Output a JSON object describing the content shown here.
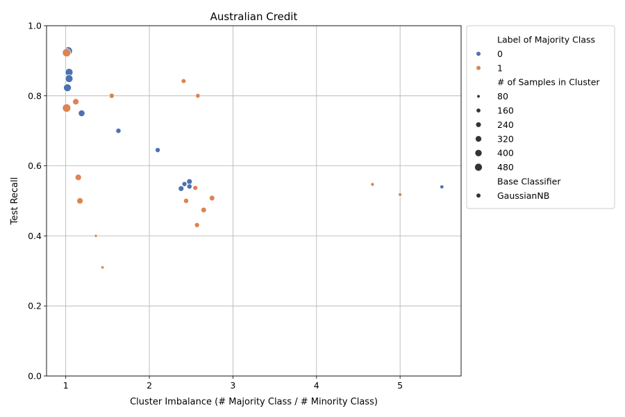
{
  "chart_data": {
    "type": "scatter",
    "title": "Australian Credit",
    "xlabel": "Cluster Imbalance (# Majority Class / # Minority Class)",
    "ylabel": "Test Recall",
    "xlim": [
      0.77,
      5.73
    ],
    "ylim": [
      0,
      1.0
    ],
    "xticks": [
      1,
      2,
      3,
      4,
      5
    ],
    "yticks": [
      0.0,
      0.2,
      0.4,
      0.6,
      0.8,
      1.0
    ],
    "xtick_labels": [
      "1",
      "2",
      "3",
      "4",
      "5"
    ],
    "ytick_labels": [
      "0.0",
      "0.2",
      "0.4",
      "0.6",
      "0.8",
      "1.0"
    ],
    "grid": true,
    "legend": {
      "placement": "outside-right-top",
      "hue_title": "Label of Majority Class",
      "hue_entries": [
        {
          "label": "0",
          "color": "#4c72b0"
        },
        {
          "label": "1",
          "color": "#dd8452"
        }
      ],
      "size_title": "# of Samples in Cluster",
      "size_entries": [
        {
          "label": "80",
          "value": 80
        },
        {
          "label": "160",
          "value": 160
        },
        {
          "label": "240",
          "value": 240
        },
        {
          "label": "320",
          "value": 320
        },
        {
          "label": "400",
          "value": 400
        },
        {
          "label": "480",
          "value": 480
        }
      ],
      "style_title": "Base Classifier",
      "style_entries": [
        {
          "label": "GaussianNB"
        }
      ]
    },
    "series": [
      {
        "name": "0",
        "color": "#4c72b0",
        "points": [
          {
            "x": 1.03,
            "y": 0.928,
            "samples": 560
          },
          {
            "x": 1.04,
            "y": 0.867,
            "samples": 480
          },
          {
            "x": 1.04,
            "y": 0.849,
            "samples": 480
          },
          {
            "x": 1.02,
            "y": 0.823,
            "samples": 480
          },
          {
            "x": 1.19,
            "y": 0.75,
            "samples": 350
          },
          {
            "x": 1.63,
            "y": 0.7,
            "samples": 210
          },
          {
            "x": 2.1,
            "y": 0.645,
            "samples": 200
          },
          {
            "x": 2.48,
            "y": 0.555,
            "samples": 250
          },
          {
            "x": 2.42,
            "y": 0.548,
            "samples": 200
          },
          {
            "x": 2.48,
            "y": 0.541,
            "samples": 210
          },
          {
            "x": 2.38,
            "y": 0.535,
            "samples": 250
          },
          {
            "x": 5.5,
            "y": 0.54,
            "samples": 120
          }
        ]
      },
      {
        "name": "1",
        "color": "#dd8452",
        "points": [
          {
            "x": 1.01,
            "y": 0.923,
            "samples": 560
          },
          {
            "x": 1.01,
            "y": 0.765,
            "samples": 560
          },
          {
            "x": 1.12,
            "y": 0.783,
            "samples": 320
          },
          {
            "x": 1.15,
            "y": 0.567,
            "samples": 320
          },
          {
            "x": 1.17,
            "y": 0.5,
            "samples": 320
          },
          {
            "x": 1.36,
            "y": 0.4,
            "samples": 70
          },
          {
            "x": 1.44,
            "y": 0.31,
            "samples": 80
          },
          {
            "x": 1.55,
            "y": 0.8,
            "samples": 210
          },
          {
            "x": 2.41,
            "y": 0.842,
            "samples": 180
          },
          {
            "x": 2.58,
            "y": 0.8,
            "samples": 170
          },
          {
            "x": 2.55,
            "y": 0.537,
            "samples": 190
          },
          {
            "x": 2.44,
            "y": 0.5,
            "samples": 210
          },
          {
            "x": 2.75,
            "y": 0.508,
            "samples": 240
          },
          {
            "x": 2.65,
            "y": 0.474,
            "samples": 240
          },
          {
            "x": 2.57,
            "y": 0.431,
            "samples": 200
          },
          {
            "x": 4.67,
            "y": 0.547,
            "samples": 100
          },
          {
            "x": 5.0,
            "y": 0.518,
            "samples": 100
          }
        ]
      }
    ]
  }
}
